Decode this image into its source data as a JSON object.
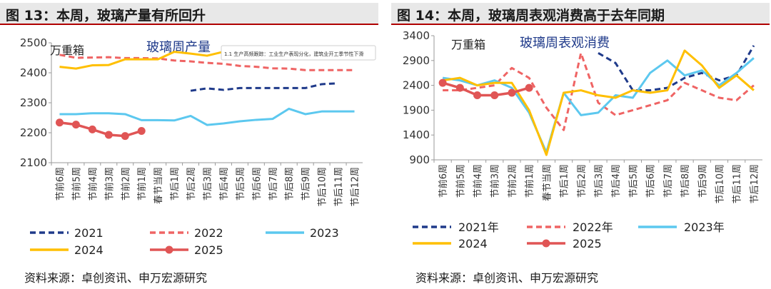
{
  "figures": [
    {
      "title": "图 13：本周，玻璃产量有所回升",
      "source": "资料来源：卓创资讯、申万宏源研究",
      "tooltip": "1.1 生产高频跟踪：工业生产表现分化，建筑业开工季节性下滑"
    },
    {
      "title": "图 14：本周，玻璃周表观消费高于去年同期",
      "source": "资料来源：卓创资讯、申万宏源研究"
    }
  ],
  "colors": {
    "2021": "#1f3a8a",
    "2022": "#ef6464",
    "2023": "#5cc8ef",
    "2024": "#ffbf00",
    "2025": "#e05555"
  },
  "chart_data": [
    {
      "type": "line",
      "title": "玻璃周产量",
      "ylabel": "万重箱",
      "ylim": [
        2100,
        2500
      ],
      "yticks": [
        2100,
        2200,
        2300,
        2400,
        2500
      ],
      "categories": [
        "节前6周",
        "节前5周",
        "节前4周",
        "节前3周",
        "节前2周",
        "节前1周",
        "春节当周",
        "节后1周",
        "节后2周",
        "节后3周",
        "节后4周",
        "节后5周",
        "节后6周",
        "节后7周",
        "节后8周",
        "节后9周",
        "节后10周",
        "节后11周",
        "节后12周"
      ],
      "legend": [
        "2021",
        "2022",
        "2023",
        "2024",
        "2025"
      ],
      "series": [
        {
          "name": "2021",
          "style": "dashed",
          "values": [
            null,
            null,
            null,
            null,
            null,
            null,
            null,
            null,
            2340,
            2348,
            2343,
            2349,
            2349,
            2349,
            2349,
            2349,
            2362,
            2365,
            null
          ]
        },
        {
          "name": "2022",
          "style": "dashed",
          "values": [
            2460,
            2450,
            2451,
            2452,
            2449,
            2449,
            2448,
            2441,
            2438,
            2433,
            2430,
            2423,
            2420,
            2415,
            2414,
            2409,
            2409,
            2409,
            2409
          ]
        },
        {
          "name": "2023",
          "style": "solid",
          "values": [
            2262,
            2262,
            2265,
            2265,
            2262,
            2242,
            2242,
            2241,
            2256,
            2226,
            2231,
            2238,
            2243,
            2246,
            2280,
            2262,
            2271,
            2271,
            2271
          ]
        },
        {
          "name": "2024",
          "style": "solid",
          "values": [
            2420,
            2414,
            2425,
            2426,
            2445,
            2445,
            2445,
            2470,
            2464,
            2457,
            2470,
            null,
            null,
            null,
            null,
            null,
            null,
            null,
            null
          ]
        },
        {
          "name": "2025",
          "style": "marker",
          "values": [
            2234,
            2227,
            2211,
            2193,
            2189,
            2206,
            null,
            null,
            null,
            null,
            null,
            null,
            null,
            null,
            null,
            null,
            null,
            null,
            null
          ]
        }
      ]
    },
    {
      "type": "line",
      "title": "玻璃周表观消费",
      "ylabel": "万重箱",
      "ylim": [
        900,
        3400
      ],
      "yticks": [
        900,
        1400,
        1900,
        2400,
        2900,
        3400
      ],
      "categories": [
        "节前6周",
        "节前5周",
        "节前4周",
        "节前3周",
        "节前2周",
        "节前1周",
        "春节当周",
        "节后1周",
        "节后2周",
        "节后3周",
        "节后4周",
        "节后5周",
        "节后6周",
        "节后7周",
        "节后8周",
        "节后9周",
        "节后10周",
        "节后11周",
        "节后12周"
      ],
      "legend": [
        "2021年",
        "2022年",
        "2023年",
        "2024",
        "2025"
      ],
      "series": [
        {
          "name": "2021年",
          "style": "dashed",
          "values": [
            null,
            null,
            null,
            null,
            null,
            null,
            null,
            null,
            null,
            3050,
            2850,
            2300,
            2300,
            2350,
            2550,
            2650,
            2500,
            2600,
            3200
          ]
        },
        {
          "name": "2022年",
          "style": "dashed",
          "values": [
            2300,
            2300,
            2350,
            2400,
            2750,
            2550,
            1950,
            1500,
            3050,
            2050,
            1800,
            1900,
            2000,
            2100,
            2450,
            2300,
            2150,
            2100,
            2400
          ]
        },
        {
          "name": "2023年",
          "style": "solid",
          "values": [
            2550,
            2500,
            2400,
            2500,
            2350,
            1850,
            1050,
            2250,
            1800,
            1850,
            2200,
            2150,
            2650,
            2900,
            2600,
            2700,
            2400,
            2650,
            2950
          ]
        },
        {
          "name": "2024",
          "style": "solid",
          "values": [
            2500,
            2550,
            2400,
            2450,
            2450,
            1900,
            1000,
            2250,
            2300,
            2200,
            2150,
            2300,
            2250,
            2300,
            3100,
            2800,
            2350,
            2600,
            2300
          ]
        },
        {
          "name": "2025",
          "style": "marker",
          "values": [
            2450,
            2350,
            2200,
            2200,
            2250,
            2350,
            null,
            null,
            null,
            null,
            null,
            null,
            null,
            null,
            null,
            null,
            null,
            null,
            null
          ]
        }
      ]
    }
  ]
}
